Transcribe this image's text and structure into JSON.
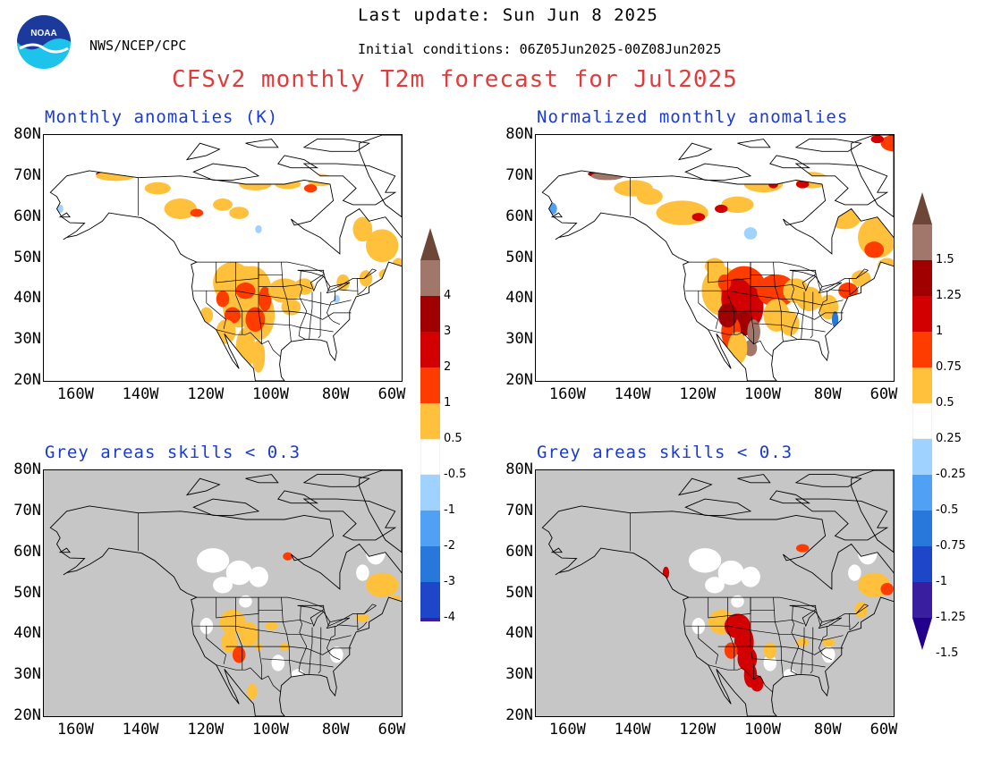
{
  "header": {
    "agency": "NWS/NCEP/CPC",
    "logo_text": "NOAA",
    "last_update": "Last update: Sun Jun 8 2025",
    "initial_conditions": "Initial conditions: 06Z05Jun2025-00Z08Jun2025",
    "main_title": "CFSv2 monthly T2m forecast for Jul2025"
  },
  "panels": [
    {
      "title": "Monthly anomalies (K)",
      "kind": "anomaly",
      "grey": false
    },
    {
      "title": "Normalized monthly anomalies",
      "kind": "normalized",
      "grey": false
    },
    {
      "title": "Grey areas skills < 0.3",
      "kind": "anomaly",
      "grey": true
    },
    {
      "title": "Grey areas skills < 0.3",
      "kind": "normalized",
      "grey": true
    }
  ],
  "axes": {
    "lat_labels": [
      "80N",
      "70N",
      "60N",
      "50N",
      "40N",
      "30N",
      "20N"
    ],
    "lon_labels": [
      "160W",
      "140W",
      "120W",
      "100W",
      "80W",
      "60W"
    ]
  },
  "colorbars": {
    "anomaly": {
      "labels": [
        "4",
        "3",
        "2",
        "1",
        "0.5",
        "-0.5",
        "-1",
        "-2",
        "-3",
        "-4"
      ]
    },
    "normalized": {
      "labels": [
        "1.5",
        "1.25",
        "1",
        "0.75",
        "0.5",
        "0.25",
        "-0.25",
        "-0.5",
        "-0.75",
        "-1",
        "-1.25",
        "-1.5"
      ]
    }
  },
  "colors": {
    "title_red": "#e03c3c",
    "panel_title_blue": "#1a3ad6",
    "pos_levels": [
      "#ffc13c",
      "#ff3c00",
      "#d20000",
      "#a00000",
      "#a0776a",
      "#6e4637"
    ],
    "neg_levels": [
      "#a0d2ff",
      "#50a0f5",
      "#2878dc",
      "#1e46c8",
      "#3a1ea0",
      "#23008c"
    ],
    "grey": "#c6c6c6"
  }
}
